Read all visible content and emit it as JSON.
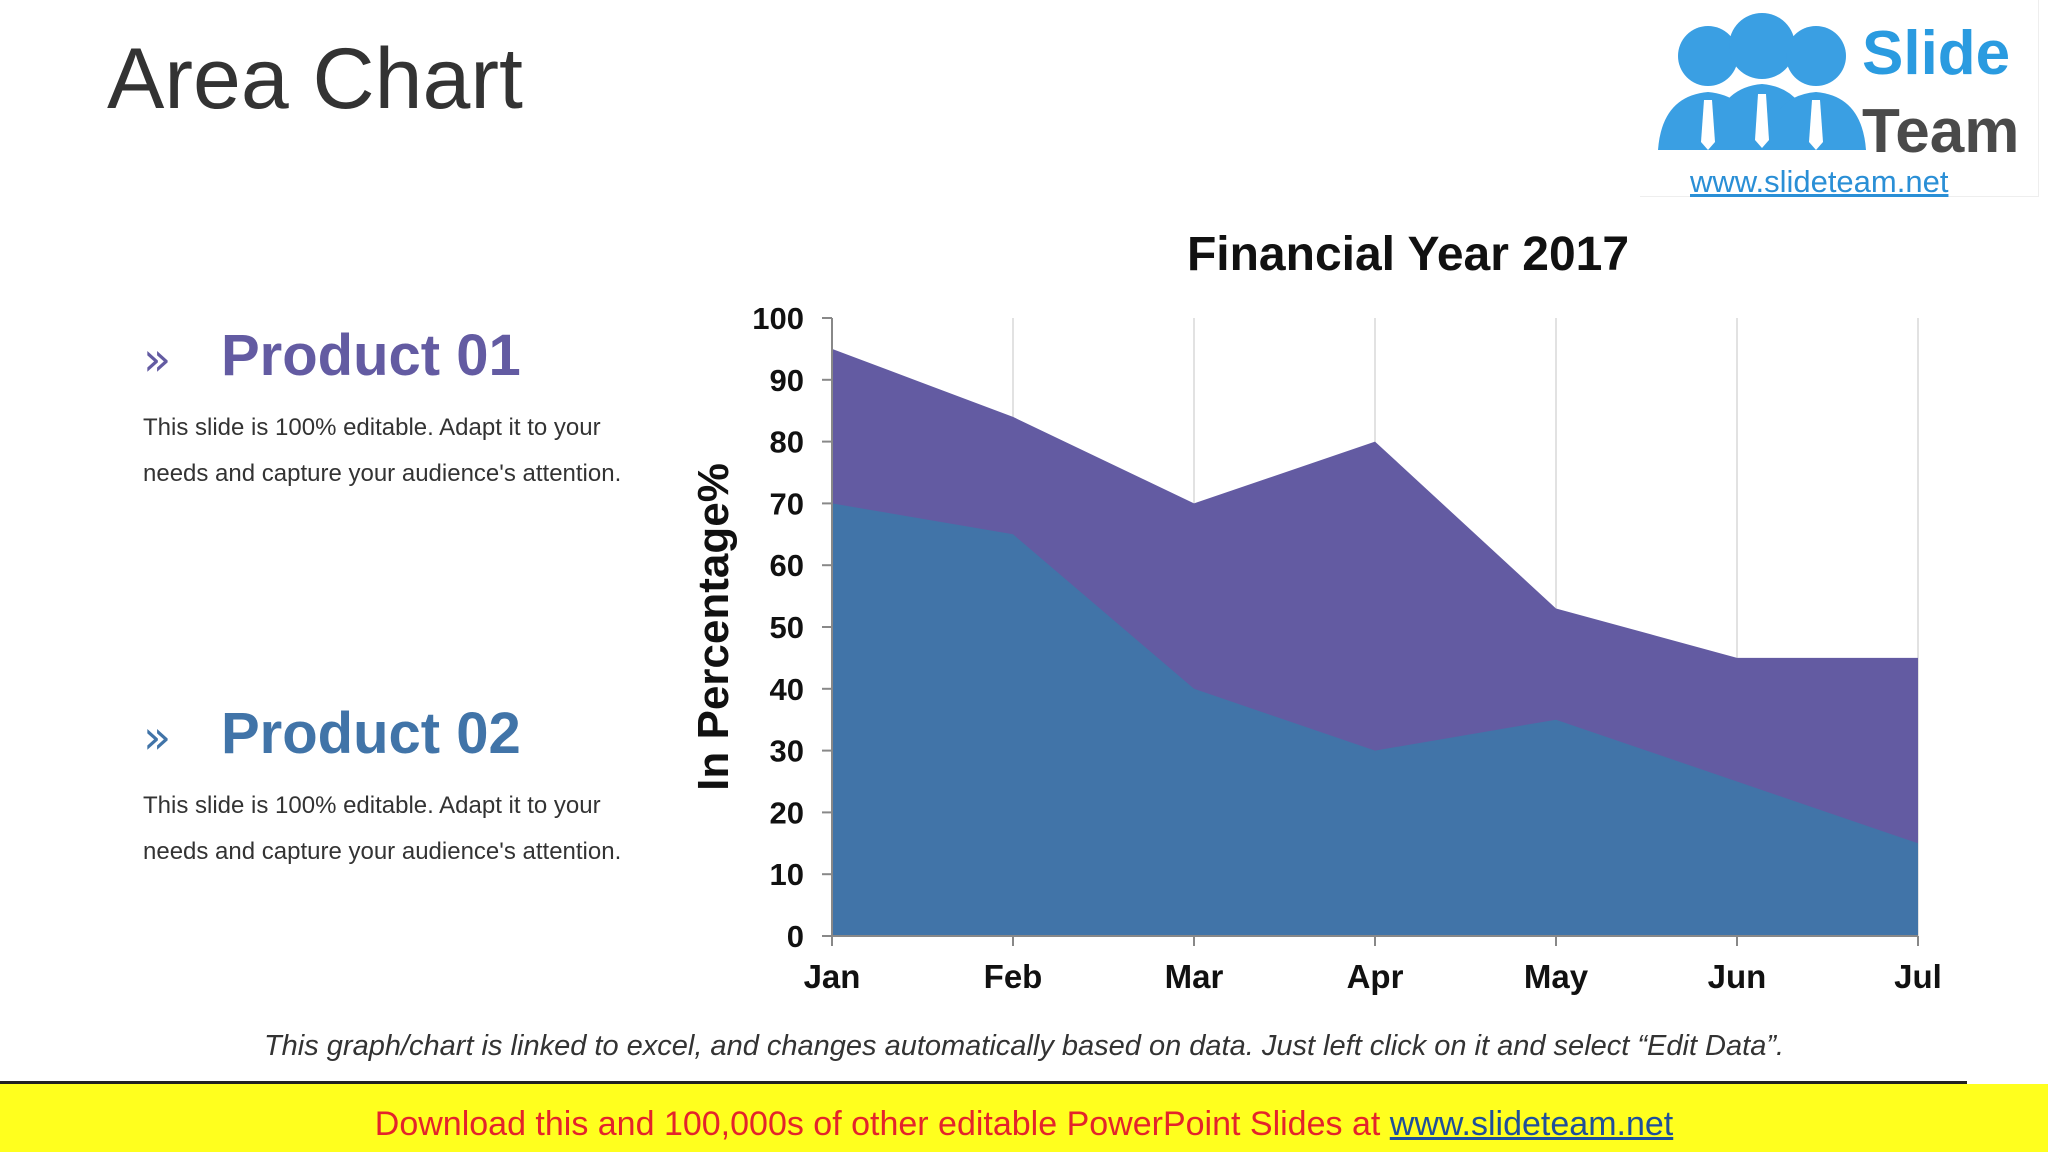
{
  "slide": {
    "title": "Area Chart",
    "note": "This graph/chart is linked to excel, and changes automatically based on data. Just left click on it and select “Edit Data”."
  },
  "logo": {
    "line1": "Slide",
    "line2": "Team",
    "url": "www.slideteam.net"
  },
  "products": [
    {
      "chevron": "»",
      "name": "Product 01",
      "description": "This slide is 100% editable. Adapt it to your needs and capture your audience's attention.",
      "color": "#635ba2"
    },
    {
      "chevron": "»",
      "name": "Product 02",
      "description": "This slide is 100% editable. Adapt it to your needs and capture your audience's attention.",
      "color": "#4174a8"
    }
  ],
  "banner": {
    "text": "Download this and 100,000s of other editable PowerPoint Slides at ",
    "link": "www.slideteam.net"
  },
  "chart_data": {
    "type": "area",
    "title": "Financial Year 2017",
    "xlabel": "",
    "ylabel": "In Percentage%",
    "categories": [
      "Jan",
      "Feb",
      "Mar",
      "Apr",
      "May",
      "Jun",
      "Jul"
    ],
    "ylim": [
      0,
      100
    ],
    "yticks": [
      0,
      10,
      20,
      30,
      40,
      50,
      60,
      70,
      80,
      90,
      100
    ],
    "grid": "vertical",
    "series": [
      {
        "name": "Product 01",
        "values": [
          95,
          84,
          70,
          80,
          53,
          45,
          45
        ],
        "color": "#635ba2"
      },
      {
        "name": "Product 02",
        "values": [
          70,
          65,
          40,
          30,
          35,
          25,
          15
        ],
        "color": "#4174a8"
      }
    ]
  }
}
